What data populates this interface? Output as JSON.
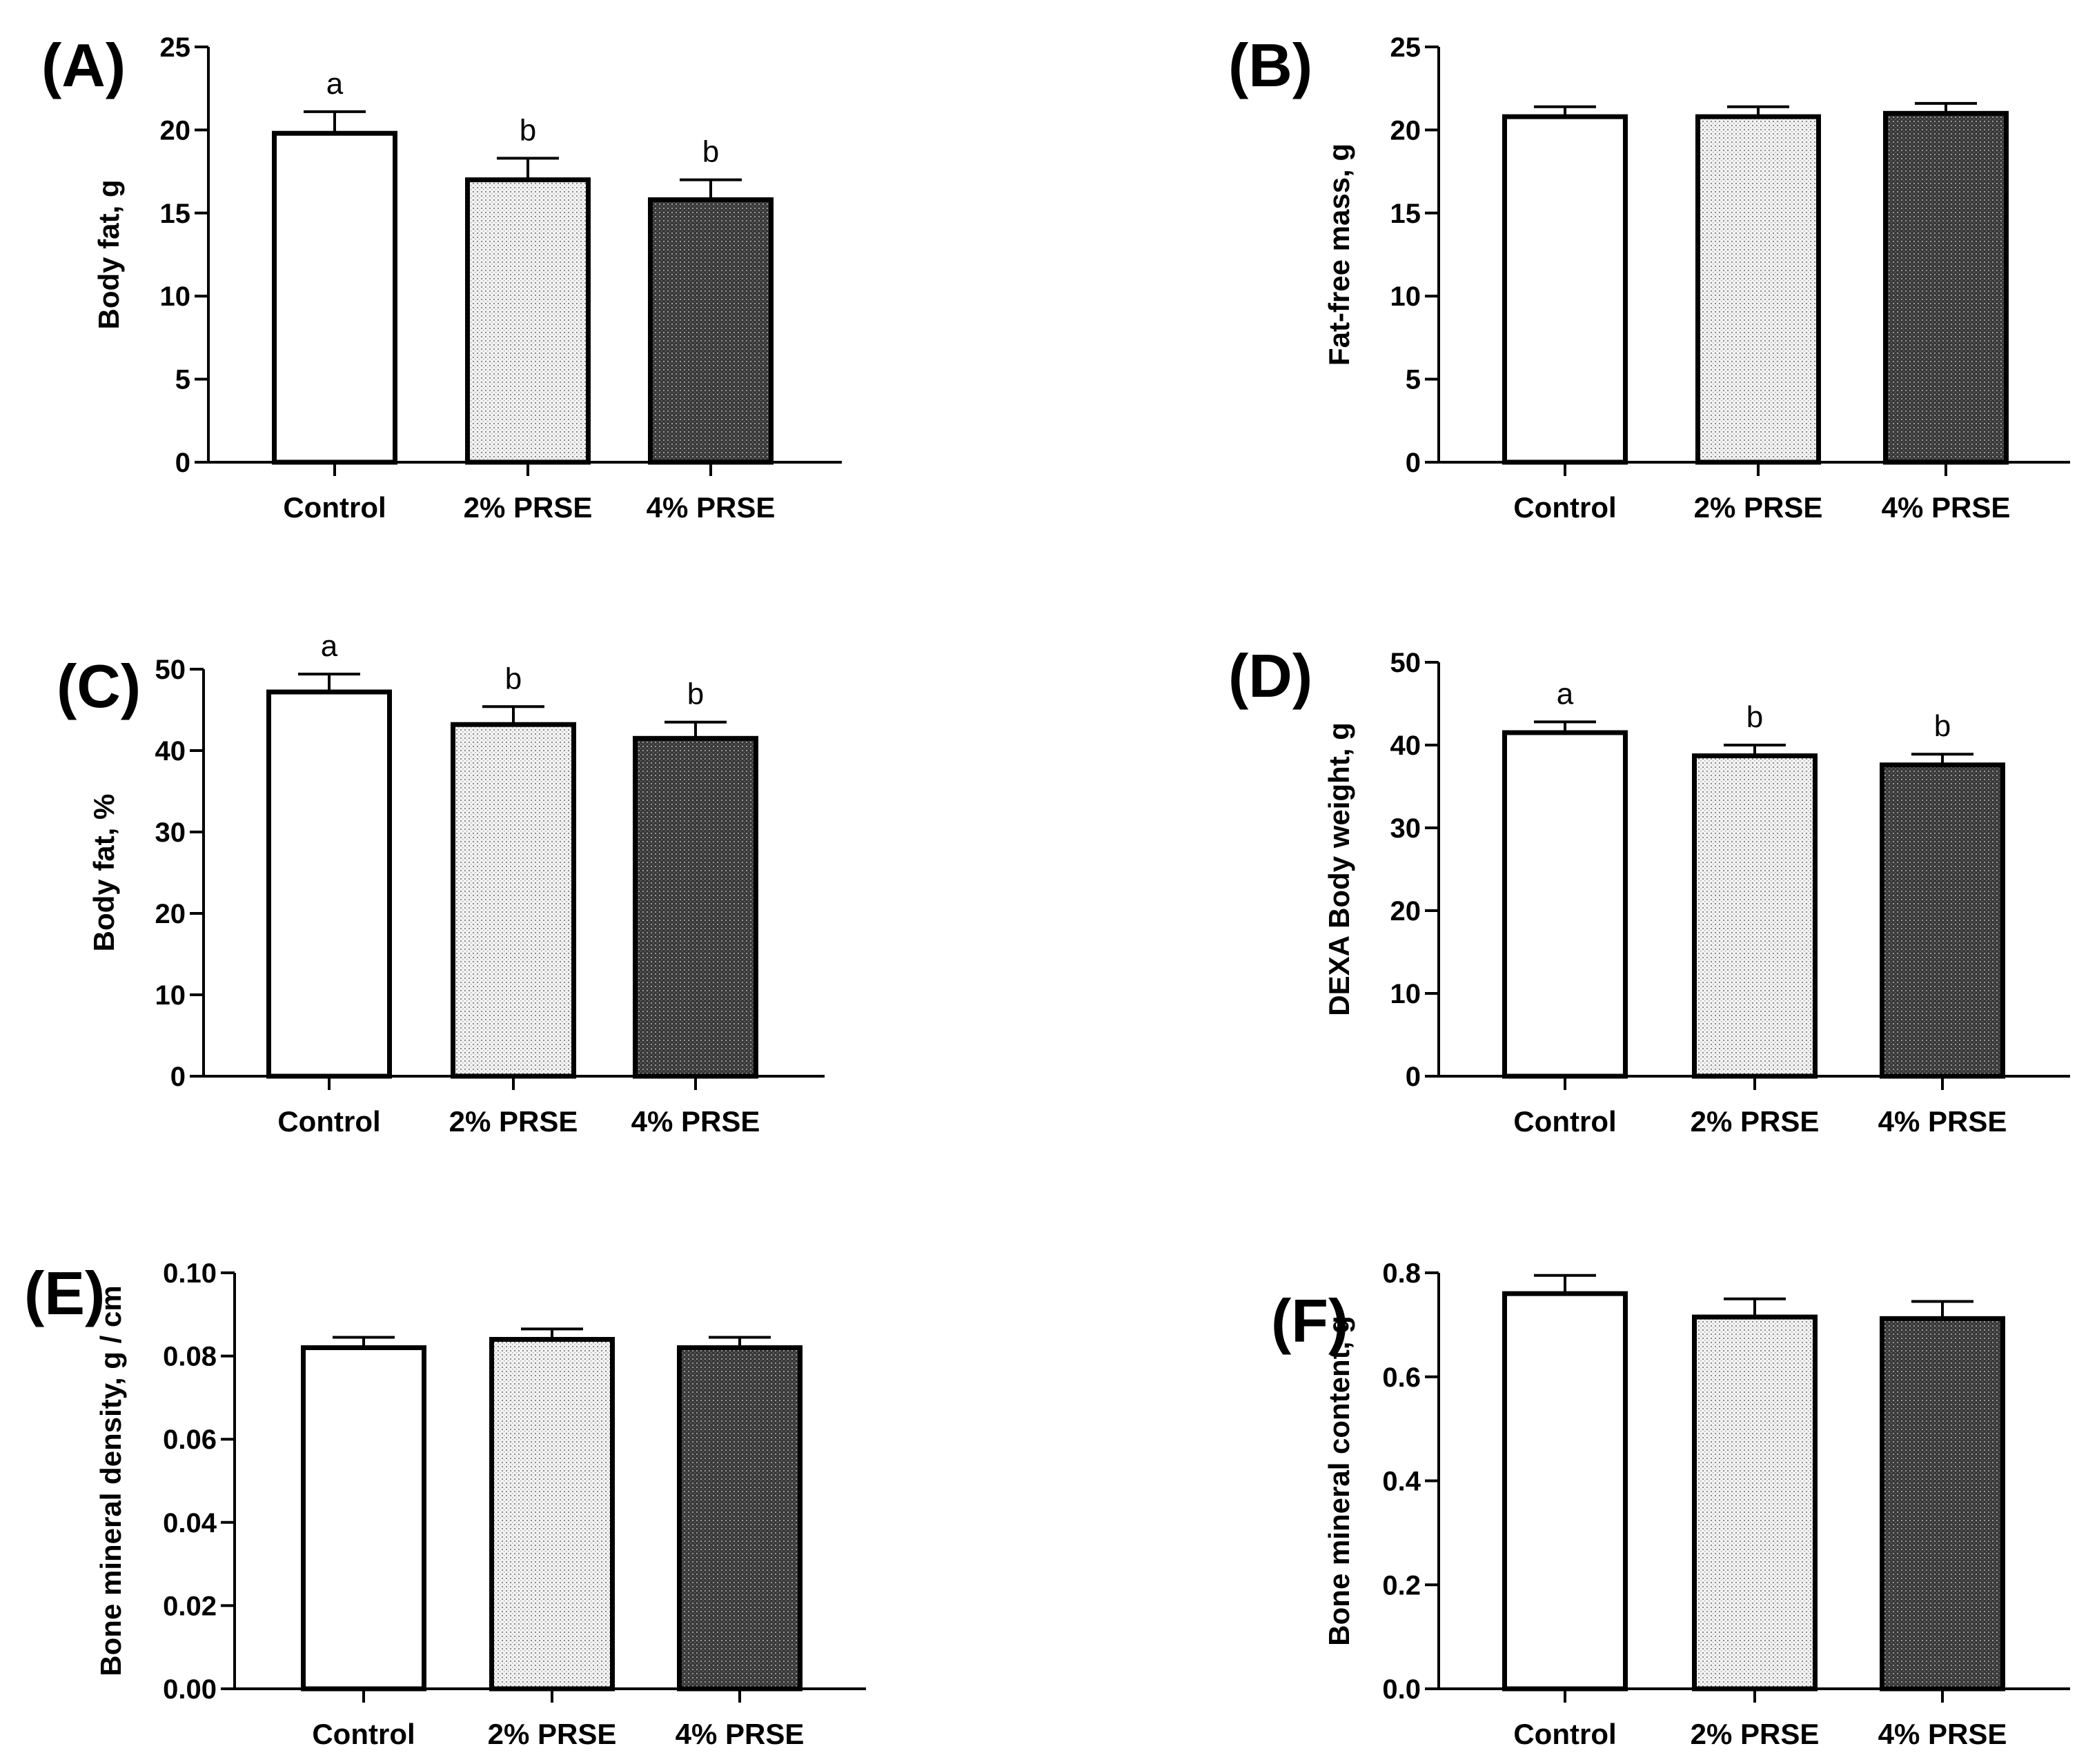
{
  "chart_data": [
    {
      "type": "bar",
      "panel": "(A)",
      "categories": [
        "Control",
        "2% PRSE",
        "4% PRSE"
      ],
      "values": [
        19.8,
        17.0,
        15.8
      ],
      "errors": [
        1.3,
        1.3,
        1.2
      ],
      "significance": [
        "a",
        "b",
        "b"
      ],
      "ylabel": "Body fat, g",
      "ylim": [
        0,
        25
      ],
      "yticks": [
        "0",
        "5",
        "10",
        "15",
        "20",
        "25"
      ]
    },
    {
      "type": "bar",
      "panel": "(B)",
      "categories": [
        "Control",
        "2% PRSE",
        "4% PRSE"
      ],
      "values": [
        20.8,
        20.8,
        21.0
      ],
      "errors": [
        0.6,
        0.6,
        0.6
      ],
      "significance": [
        "",
        "",
        ""
      ],
      "ylabel": "Fat-free mass, g",
      "ylim": [
        0,
        25
      ],
      "yticks": [
        "0",
        "5",
        "10",
        "15",
        "20",
        "25"
      ]
    },
    {
      "type": "bar",
      "panel": "(C)",
      "categories": [
        "Control",
        "2% PRSE",
        "4% PRSE"
      ],
      "values": [
        47.2,
        43.2,
        41.5
      ],
      "errors": [
        2.2,
        2.2,
        2.0
      ],
      "significance": [
        "a",
        "b",
        "b"
      ],
      "ylabel": "Body fat, %",
      "ylim": [
        0,
        50
      ],
      "yticks": [
        "0",
        "10",
        "20",
        "30",
        "40",
        "50"
      ]
    },
    {
      "type": "bar",
      "panel": "(D)",
      "categories": [
        "Control",
        "2% PRSE",
        "4% PRSE"
      ],
      "values": [
        41.5,
        38.7,
        37.6
      ],
      "errors": [
        1.3,
        1.3,
        1.3
      ],
      "significance": [
        "a",
        "b",
        "b"
      ],
      "ylabel": "DEXA Body weight, g",
      "ylim": [
        0,
        50
      ],
      "yticks": [
        "0",
        "10",
        "20",
        "30",
        "40",
        "50"
      ]
    },
    {
      "type": "bar",
      "panel": "(E)",
      "categories": [
        "Control",
        "2% PRSE",
        "4% PRSE"
      ],
      "values": [
        0.082,
        0.084,
        0.082
      ],
      "errors": [
        0.0025,
        0.0025,
        0.0025
      ],
      "significance": [
        "",
        "",
        ""
      ],
      "ylabel": "Bone mineral density, g / cm",
      "ylim": [
        0,
        0.1
      ],
      "yticks": [
        "0.00",
        "0.02",
        "0.04",
        "0.06",
        "0.08",
        "0.10"
      ]
    },
    {
      "type": "bar",
      "panel": "(F)",
      "categories": [
        "Control",
        "2% PRSE",
        "4% PRSE"
      ],
      "values": [
        0.76,
        0.715,
        0.712
      ],
      "errors": [
        0.035,
        0.035,
        0.033
      ],
      "significance": [
        "",
        "",
        ""
      ],
      "ylabel": "Bone mineral content, g",
      "ylim": [
        0,
        0.8
      ],
      "yticks": [
        "0.0",
        "0.2",
        "0.4",
        "0.6",
        "0.8"
      ]
    }
  ]
}
